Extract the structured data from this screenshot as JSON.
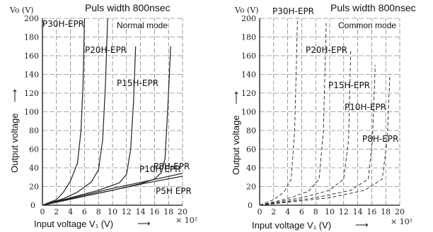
{
  "chart_data": [
    {
      "type": "line",
      "title": "Puls width 800nsec",
      "mode_label": "Normal mode",
      "y_unit_label": "Vo (V)",
      "ylabel": "Output voltage",
      "xlabel": "Input voltage  V₁ (V)",
      "x_multiplier": "× 10²",
      "xlim": [
        0,
        20
      ],
      "ylim": [
        0,
        200
      ],
      "xticks": [
        "0",
        "2",
        "4",
        "6",
        "8",
        "10",
        "12",
        "14",
        "16",
        "18",
        "20"
      ],
      "yticks": [
        "20",
        "40",
        "60",
        "80",
        "100",
        "120",
        "140",
        "160",
        "180",
        "200"
      ],
      "grid": true,
      "series": [
        {
          "name": "P30H-EPR",
          "x": [
            0,
            2,
            3,
            4,
            5,
            5.5,
            5.8,
            6
          ],
          "y": [
            0,
            6,
            14,
            26,
            45,
            80,
            130,
            200
          ]
        },
        {
          "name": "P20H-EPR",
          "x": [
            0,
            3,
            5,
            7,
            8,
            8.6,
            9,
            9.3
          ],
          "y": [
            0,
            7,
            14,
            25,
            38,
            70,
            130,
            200
          ]
        },
        {
          "name": "P15H-EPR",
          "x": [
            0,
            4,
            8,
            11,
            12,
            12.6,
            13,
            13.3
          ],
          "y": [
            0,
            8,
            16,
            24,
            33,
            60,
            110,
            170
          ]
        },
        {
          "name": "P10H EPR",
          "x": [
            0,
            5,
            10,
            14,
            16,
            17,
            17.5,
            18,
            18.3
          ],
          "y": [
            0,
            8,
            16,
            23,
            28,
            35,
            50,
            120,
            170
          ]
        },
        {
          "name": "P8H-EPR",
          "x": [
            0,
            5,
            10,
            15,
            20
          ],
          "y": [
            0,
            9,
            18,
            26,
            34
          ]
        },
        {
          "name": "P5H EPR",
          "x": [
            0,
            5,
            10,
            15,
            20
          ],
          "y": [
            0,
            8,
            16,
            24,
            31
          ]
        }
      ]
    },
    {
      "type": "line",
      "title": "Puls width 800nsec",
      "mode_label": "Common mode",
      "y_unit_label": "Vo (V)",
      "ylabel": "Output voltage",
      "xlabel": "Input voltage  V₁ (V)",
      "x_multiplier": "× 10²",
      "xlim": [
        0,
        20
      ],
      "ylim": [
        0,
        200
      ],
      "xticks": [
        "0",
        "2",
        "4",
        "6",
        "8",
        "10",
        "12",
        "14",
        "16",
        "18",
        "20"
      ],
      "yticks": [
        "20",
        "40",
        "60",
        "80",
        "100",
        "120",
        "140",
        "160",
        "180",
        "200"
      ],
      "grid": true,
      "series": [
        {
          "name": "P30H-EPR",
          "x": [
            0,
            2,
            3.5,
            4.5,
            5,
            5.4
          ],
          "y": [
            0,
            6,
            14,
            28,
            80,
            200
          ]
        },
        {
          "name": "P20H-EPR",
          "x": [
            0,
            4,
            7,
            8.5,
            9.1,
            9.5
          ],
          "y": [
            0,
            7,
            15,
            28,
            80,
            195
          ]
        },
        {
          "name": "P15H-EPR",
          "x": [
            0,
            6,
            10,
            12,
            12.7,
            13
          ],
          "y": [
            0,
            8,
            16,
            28,
            70,
            165
          ]
        },
        {
          "name": "P10H-EPR",
          "x": [
            0,
            8,
            13,
            15.5,
            16.1,
            16.5
          ],
          "y": [
            0,
            8,
            16,
            28,
            70,
            150
          ]
        },
        {
          "name": "P8H-EPR",
          "x": [
            0,
            10,
            15,
            17.5,
            18.2,
            18.6
          ],
          "y": [
            0,
            8,
            16,
            28,
            70,
            140
          ]
        }
      ]
    }
  ]
}
